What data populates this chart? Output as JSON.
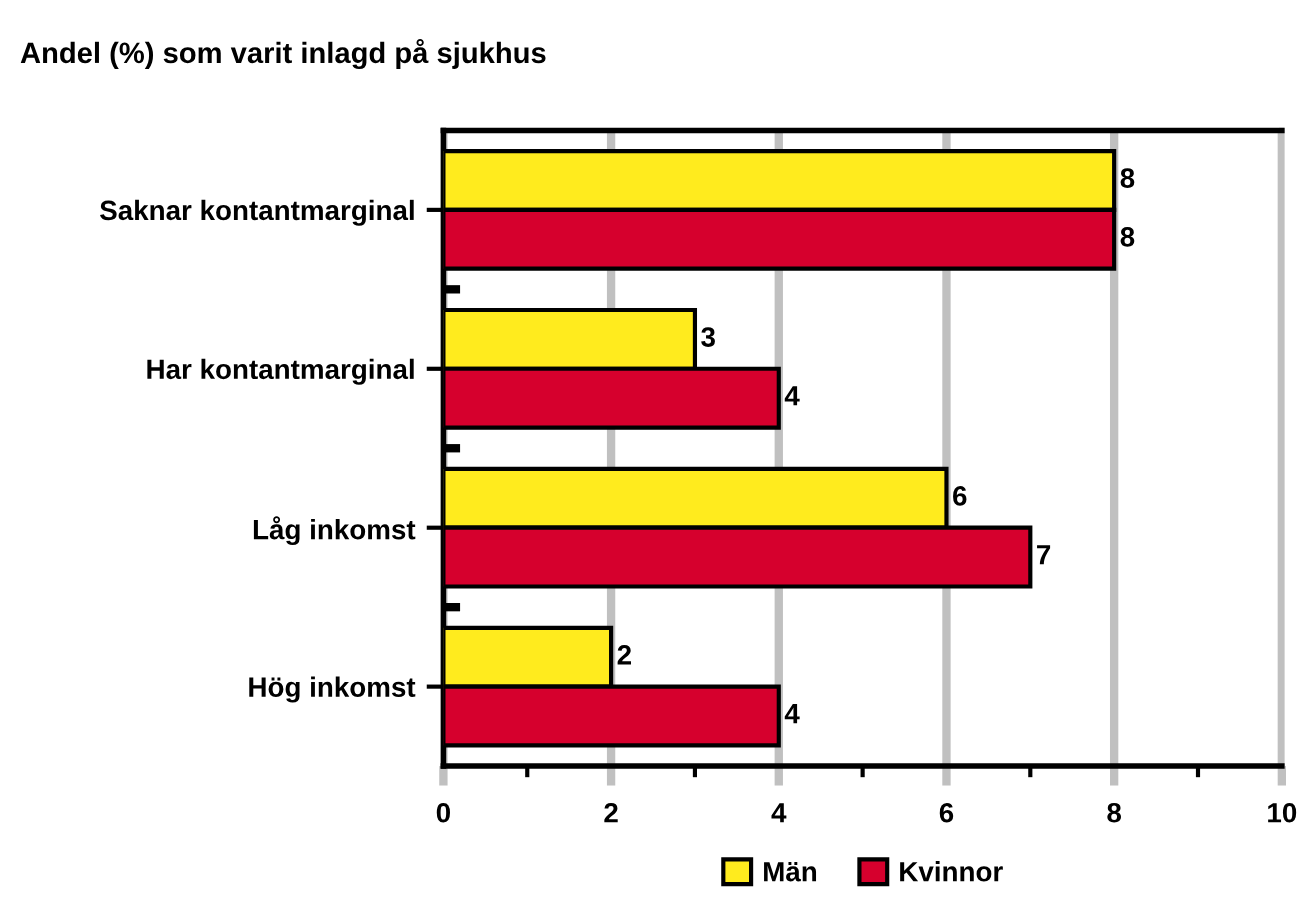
{
  "chart_data": {
    "type": "bar",
    "orientation": "horizontal",
    "title": "Andel (%) som varit inlagd på sjukhus",
    "categories": [
      "Saknar kontantmarginal",
      "Har kontantmarginal",
      "Låg inkomst",
      "Hög inkomst"
    ],
    "series": [
      {
        "name": "Män",
        "color": "#ffeb1e",
        "values": [
          8,
          3,
          6,
          2
        ]
      },
      {
        "name": "Kvinnor",
        "color": "#d6002d",
        "values": [
          8,
          4,
          7,
          4
        ]
      }
    ],
    "xlim": [
      0,
      10
    ],
    "xticks": [
      0,
      {
        "value": 1,
        "label": null
      },
      2,
      {
        "value": 3,
        "label": null
      },
      4,
      {
        "value": 5,
        "label": null
      },
      6,
      {
        "value": 7,
        "label": null
      },
      8,
      {
        "value": 9,
        "label": null
      },
      10
    ],
    "grid": "x",
    "legend": "bottom",
    "data_labels": true
  }
}
